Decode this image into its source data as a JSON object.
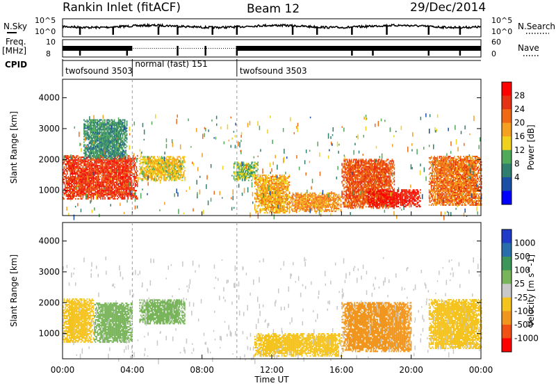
{
  "header": {
    "station": "Rankin Inlet (fitACF)",
    "beam": "Beam 12",
    "date": "29/Dec/2014"
  },
  "noise_panel": {
    "left_label": "N.Sky",
    "right_label": "N.Search",
    "left_ticks": [
      "10^5",
      "10^0"
    ],
    "right_ticks": [
      "10^5",
      "10^0"
    ]
  },
  "freq_panel": {
    "left_label_1": "Freq.",
    "left_label_2": "[MHz]",
    "right_label": "Nave",
    "left_ticks": [
      "10",
      "8"
    ],
    "right_ticks": [
      "60",
      "0"
    ]
  },
  "cpid_panel": {
    "label": "CPID",
    "segments": [
      {
        "name": "twofsound 3503",
        "start_hour": 0,
        "end_hour": 4
      },
      {
        "name": "normal (fast) 151",
        "start_hour": 4,
        "end_hour": 10
      },
      {
        "name": "twofsound 3503",
        "start_hour": 10,
        "end_hour": 24
      }
    ]
  },
  "colors": {
    "power_scale": [
      "#0000ff",
      "#1a4fa8",
      "#2f7f6e",
      "#4faa5a",
      "#f0d21e",
      "#f5a01e",
      "#f06a14",
      "#e63214",
      "#ff0000"
    ],
    "velocity_scale": [
      "#ff0000",
      "#f05014",
      "#f0961e",
      "#f5c31e",
      "#c8c8c8",
      "#78b45a",
      "#3c965a",
      "#286eaa",
      "#1e3cc8"
    ]
  },
  "chart_data": [
    {
      "type": "heatmap",
      "panel": "power",
      "xlabel": "Time UT",
      "ylabel": "Slant Range [km]",
      "x_ticks": [
        "00:00",
        "04:00",
        "08:00",
        "12:00",
        "16:00",
        "20:00",
        "00:00"
      ],
      "y_ticks": [
        "1000",
        "2000",
        "3000",
        "4000"
      ],
      "xlim": [
        0,
        24
      ],
      "ylim": [
        180,
        4600
      ],
      "colorbar": {
        "label": "Power [dB]",
        "ticks": [
          "4",
          "8",
          "12",
          "16",
          "20",
          "24",
          "28"
        ],
        "range": [
          0,
          30
        ]
      },
      "regions": [
        {
          "t": [
            0.0,
            4.3
          ],
          "range": [
            700,
            2100
          ],
          "value": 26
        },
        {
          "t": [
            1.2,
            3.7
          ],
          "range": [
            2000,
            3300
          ],
          "value": 9
        },
        {
          "t": [
            4.4,
            7.0
          ],
          "range": [
            1300,
            2100
          ],
          "value": 16
        },
        {
          "t": [
            9.8,
            11.2
          ],
          "range": [
            1300,
            1900
          ],
          "value": 12
        },
        {
          "t": [
            11.0,
            13.0
          ],
          "range": [
            250,
            1500
          ],
          "value": 18
        },
        {
          "t": [
            13.0,
            16.0
          ],
          "range": [
            300,
            900
          ],
          "value": 20
        },
        {
          "t": [
            16.0,
            19.0
          ],
          "range": [
            400,
            2000
          ],
          "value": 24
        },
        {
          "t": [
            17.5,
            20.5
          ],
          "range": [
            450,
            1000
          ],
          "value": 28
        },
        {
          "t": [
            21.0,
            24.0
          ],
          "range": [
            500,
            2100
          ],
          "value": 22
        }
      ]
    },
    {
      "type": "heatmap",
      "panel": "velocity",
      "xlabel": "Time UT",
      "ylabel": "Slant Range [km]",
      "x_ticks": [
        "00:00",
        "04:00",
        "08:00",
        "12:00",
        "16:00",
        "20:00",
        "00:00"
      ],
      "y_ticks": [
        "1000",
        "2000",
        "3000",
        "4000"
      ],
      "xlim": [
        0,
        24
      ],
      "ylim": [
        180,
        4600
      ],
      "colorbar": {
        "label": "Velocity [m s^-1]",
        "ticks": [
          "1000",
          "500",
          "100",
          "25",
          "-25",
          "-100",
          "-500",
          "-1000"
        ],
        "range": [
          -1000,
          1000
        ]
      },
      "regions": [
        {
          "t": [
            0.0,
            1.8
          ],
          "range": [
            700,
            2100
          ],
          "value": -300
        },
        {
          "t": [
            1.8,
            4.0
          ],
          "range": [
            700,
            2000
          ],
          "value": 200
        },
        {
          "t": [
            4.4,
            7.0
          ],
          "range": [
            1300,
            2100
          ],
          "value": 300
        },
        {
          "t": [
            11.0,
            16.0
          ],
          "range": [
            250,
            1000
          ],
          "value": -200
        },
        {
          "t": [
            16.0,
            20.0
          ],
          "range": [
            400,
            2000
          ],
          "value": -600
        },
        {
          "t": [
            21.0,
            24.0
          ],
          "range": [
            500,
            2100
          ],
          "value": -300
        }
      ]
    }
  ],
  "noise_gaps_hours": [
    1.0,
    2.9,
    5.5,
    6.6,
    8.6,
    10.0,
    13.2,
    14.6,
    16.6,
    18.6,
    21.0,
    22.8
  ],
  "freq_gaps_hours": [
    1.0,
    3.7,
    6.6,
    8.2,
    10.0,
    16.6,
    17.8,
    21.0,
    22.8
  ]
}
